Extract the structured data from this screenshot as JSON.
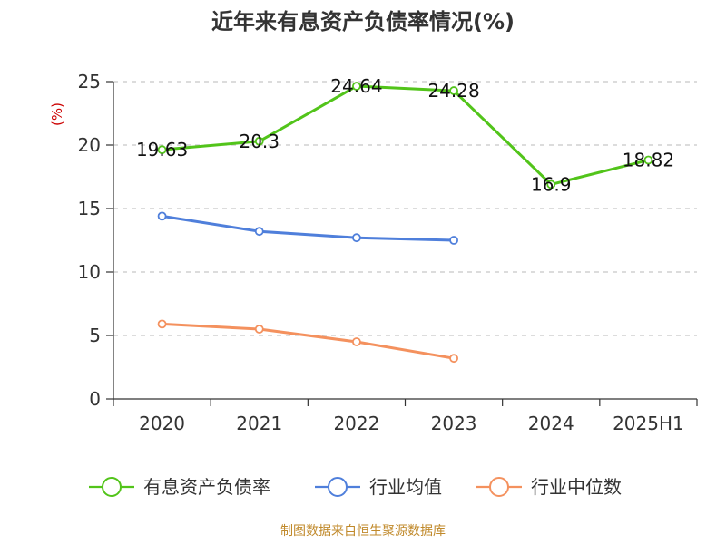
{
  "chart_data": {
    "type": "line",
    "title": "近年来有息资产负债率情况(%)",
    "ylabel": "(%)",
    "xlabel": "",
    "categories": [
      "2020",
      "2021",
      "2022",
      "2023",
      "2024",
      "2025H1"
    ],
    "ylim": [
      0,
      25
    ],
    "yticks": [
      0,
      5,
      10,
      15,
      20,
      25
    ],
    "grid": true,
    "legend_position": "bottom",
    "series": [
      {
        "name": "有息资产负债率",
        "color": "#52c41a",
        "values": [
          19.63,
          20.3,
          24.64,
          24.28,
          16.9,
          18.82
        ],
        "data_labels": [
          "19.63",
          "20.3",
          "24.64",
          "24.28",
          "16.9",
          "18.82"
        ]
      },
      {
        "name": "行业均值",
        "color": "#4f7fdb",
        "values": [
          14.4,
          13.2,
          12.7,
          12.5,
          null,
          null
        ]
      },
      {
        "name": "行业中位数",
        "color": "#f4915e",
        "values": [
          5.9,
          5.5,
          4.5,
          3.2,
          null,
          null
        ]
      }
    ]
  },
  "source": "制图数据来自恒生聚源数据库"
}
